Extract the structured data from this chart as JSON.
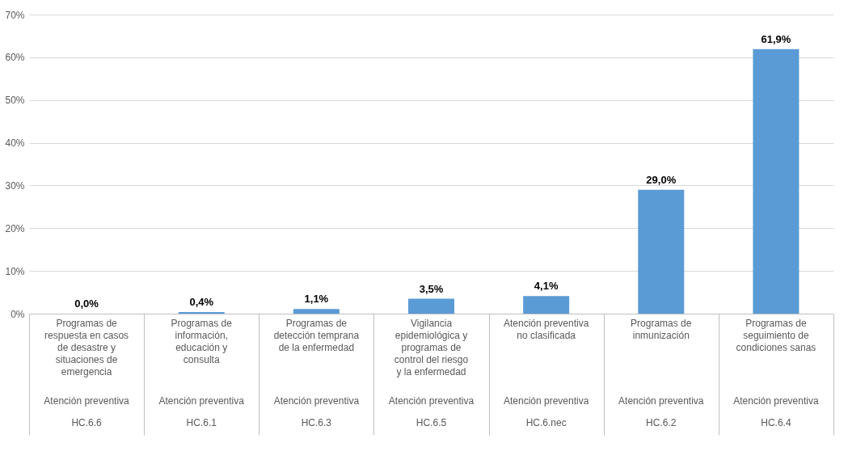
{
  "chart_data": {
    "type": "bar",
    "categories": [
      "Programas de respuesta en casos de desastre y situaciones de emergencia",
      "Programas de información, educación y consulta",
      "Programas de detección temprana de la enfermedad",
      "Vigilancia epidemiológica y programas de control del riesgo y la enfermedad",
      "Atención preventiva no clasificada",
      "Programas de inmunización",
      "Programas de seguimiento de condiciones sanas"
    ],
    "values": [
      0.0,
      0.4,
      1.1,
      3.5,
      4.1,
      29.0,
      61.9
    ],
    "value_labels": [
      "0,0%",
      "0,4%",
      "1,1%",
      "3,5%",
      "4,1%",
      "29,0%",
      "61,9%"
    ],
    "color": "#5b9bd5",
    "ylim": [
      0,
      70
    ],
    "yticks": [
      {
        "value": 0,
        "label": "0%"
      },
      {
        "value": 10,
        "label": "10%"
      },
      {
        "value": 20,
        "label": "20%"
      },
      {
        "value": 30,
        "label": "30%"
      },
      {
        "value": 40,
        "label": "40%"
      },
      {
        "value": 50,
        "label": "50%"
      },
      {
        "value": 60,
        "label": "60%"
      },
      {
        "value": 70,
        "label": "70%"
      }
    ],
    "grid": "y",
    "annotations": [
      "Atención preventiva",
      "HC.6.6",
      "Atención preventiva",
      "HC.6.1",
      "Atención preventiva",
      "HC.6.3",
      "Atención preventiva",
      "HC.6.5",
      "Atención preventiva",
      "HC.6.nec",
      "Atención preventiva",
      "HC.6.2",
      "Atención preventiva",
      "HC.6.4"
    ]
  }
}
